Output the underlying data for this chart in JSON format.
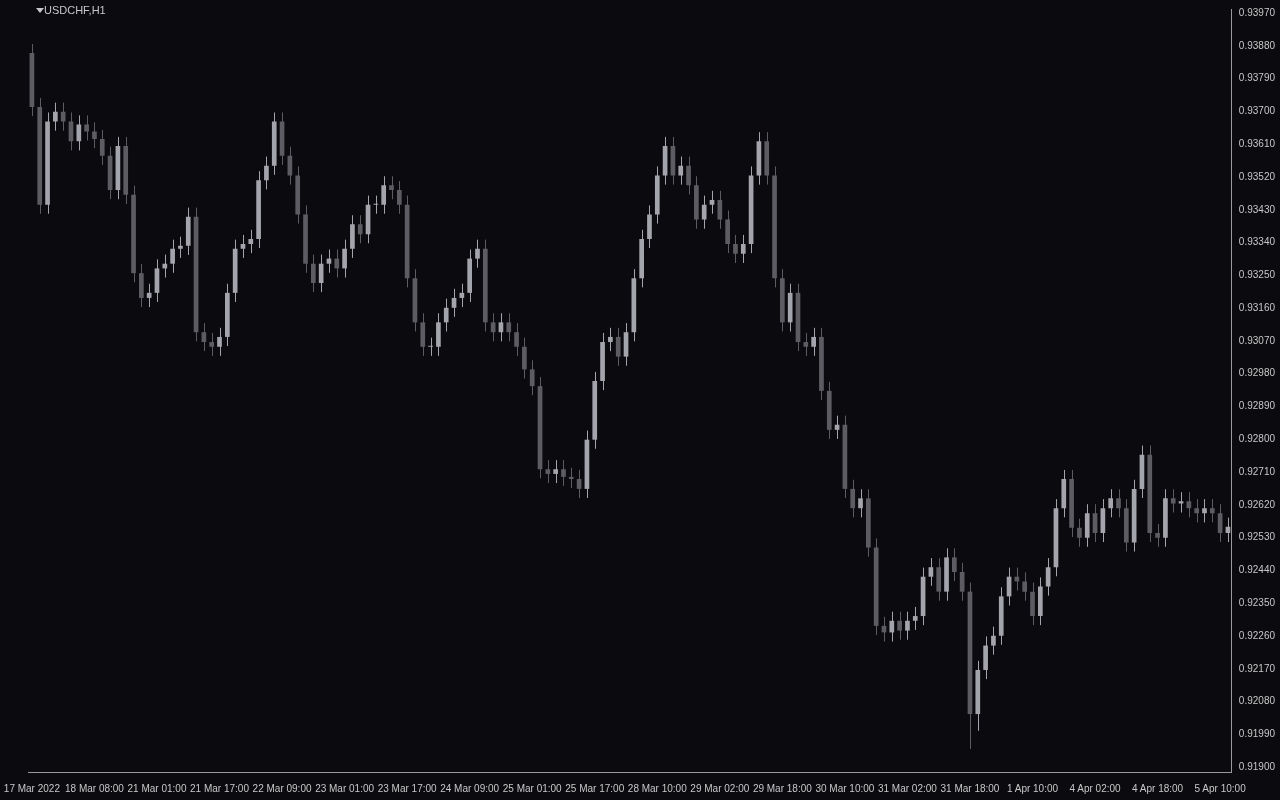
{
  "chart_data": {
    "type": "candlestick",
    "title": "USDCHF,H1",
    "categories": [
      "17 Mar 2022",
      null,
      null,
      null,
      null,
      null,
      null,
      null,
      "18 Mar 08:00",
      null,
      null,
      null,
      null,
      null,
      null,
      null,
      "21 Mar 01:00",
      null,
      null,
      null,
      null,
      null,
      null,
      null,
      "21 Mar 17:00",
      null,
      null,
      null,
      null,
      null,
      null,
      null,
      "22 Mar 09:00",
      null,
      null,
      null,
      null,
      null,
      null,
      null,
      "23 Mar 01:00",
      null,
      null,
      null,
      null,
      null,
      null,
      null,
      "23 Mar 17:00",
      null,
      null,
      null,
      null,
      null,
      null,
      null,
      "24 Mar 09:00",
      null,
      null,
      null,
      null,
      null,
      null,
      null,
      "25 Mar 01:00",
      null,
      null,
      null,
      null,
      null,
      null,
      null,
      "25 Mar 17:00",
      null,
      null,
      null,
      null,
      null,
      null,
      null,
      "28 Mar 10:00",
      null,
      null,
      null,
      null,
      null,
      null,
      null,
      "29 Mar 02:00",
      null,
      null,
      null,
      null,
      null,
      null,
      null,
      "29 Mar 18:00",
      null,
      null,
      null,
      null,
      null,
      null,
      null,
      "30 Mar 10:00",
      null,
      null,
      null,
      null,
      null,
      null,
      null,
      "31 Mar 02:00",
      null,
      null,
      null,
      null,
      null,
      null,
      null,
      "31 Mar 18:00",
      null,
      null,
      null,
      null,
      null,
      null,
      null,
      "1 Apr 10:00",
      null,
      null,
      null,
      null,
      null,
      null,
      null,
      "4 Apr 02:00",
      null,
      null,
      null,
      null,
      null,
      null,
      null,
      "4 Apr 18:00",
      null,
      null,
      null,
      null,
      null,
      null,
      null,
      "5 Apr 10:00",
      null
    ],
    "ohlc": [
      [
        0.9386,
        0.93885,
        0.93687,
        0.93712
      ],
      [
        0.93712,
        0.93737,
        0.93419,
        0.93444
      ],
      [
        0.93444,
        0.93697,
        0.93419,
        0.93672
      ],
      [
        0.93672,
        0.93724,
        0.93647,
        0.93699
      ],
      [
        0.93699,
        0.93724,
        0.93647,
        0.93672
      ],
      [
        0.93672,
        0.93697,
        0.93593,
        0.93618
      ],
      [
        0.93618,
        0.93689,
        0.93593,
        0.93664
      ],
      [
        0.93664,
        0.93689,
        0.9362,
        0.93645
      ],
      [
        0.93645,
        0.9367,
        0.93599,
        0.93624
      ],
      [
        0.93624,
        0.93649,
        0.93553,
        0.93578
      ],
      [
        0.93578,
        0.93603,
        0.93459,
        0.93484
      ],
      [
        0.93484,
        0.9363,
        0.93459,
        0.93605
      ],
      [
        0.93605,
        0.9363,
        0.93446,
        0.93471
      ],
      [
        0.93471,
        0.93496,
        0.93231,
        0.93256
      ],
      [
        0.93256,
        0.93281,
        0.93163,
        0.93188
      ],
      [
        0.93188,
        0.93227,
        0.93163,
        0.93202
      ],
      [
        0.93202,
        0.93294,
        0.93177,
        0.93269
      ],
      [
        0.93269,
        0.93307,
        0.93244,
        0.93282
      ],
      [
        0.93282,
        0.93348,
        0.93257,
        0.93323
      ],
      [
        0.93323,
        0.93356,
        0.93298,
        0.93331
      ],
      [
        0.93331,
        0.93436,
        0.93306,
        0.93411
      ],
      [
        0.93411,
        0.93436,
        0.93069,
        0.93094
      ],
      [
        0.93094,
        0.93119,
        0.93042,
        0.93067
      ],
      [
        0.93067,
        0.93092,
        0.93029,
        0.93054
      ],
      [
        0.93054,
        0.93106,
        0.93029,
        0.93081
      ],
      [
        0.93081,
        0.93227,
        0.93056,
        0.93202
      ],
      [
        0.93202,
        0.93348,
        0.93177,
        0.93323
      ],
      [
        0.93323,
        0.93361,
        0.93298,
        0.93336
      ],
      [
        0.93336,
        0.93375,
        0.93311,
        0.9335
      ],
      [
        0.9335,
        0.93536,
        0.93325,
        0.93511
      ],
      [
        0.93511,
        0.93576,
        0.93486,
        0.93551
      ],
      [
        0.93551,
        0.93697,
        0.93526,
        0.93672
      ],
      [
        0.93672,
        0.93697,
        0.93553,
        0.93578
      ],
      [
        0.93578,
        0.93603,
        0.93499,
        0.93524
      ],
      [
        0.93524,
        0.93549,
        0.93392,
        0.93417
      ],
      [
        0.93417,
        0.93442,
        0.93257,
        0.93282
      ],
      [
        0.93282,
        0.93307,
        0.93204,
        0.93229
      ],
      [
        0.93229,
        0.93307,
        0.93204,
        0.93282
      ],
      [
        0.93282,
        0.93321,
        0.93257,
        0.93296
      ],
      [
        0.93296,
        0.93321,
        0.93244,
        0.93269
      ],
      [
        0.93269,
        0.93348,
        0.93244,
        0.93323
      ],
      [
        0.93323,
        0.93415,
        0.93298,
        0.9339
      ],
      [
        0.9339,
        0.93415,
        0.93338,
        0.93363
      ],
      [
        0.93363,
        0.93469,
        0.93338,
        0.93444
      ],
      [
        0.93444,
        0.93469,
        0.93419,
        0.93444
      ],
      [
        0.93444,
        0.93522,
        0.93419,
        0.93497
      ],
      [
        0.93497,
        0.93522,
        0.93459,
        0.93484
      ],
      [
        0.93484,
        0.93509,
        0.93419,
        0.93444
      ],
      [
        0.93444,
        0.93469,
        0.93217,
        0.93242
      ],
      [
        0.93242,
        0.93267,
        0.93096,
        0.93121
      ],
      [
        0.93121,
        0.93146,
        0.93029,
        0.93054
      ],
      [
        0.93054,
        0.93079,
        0.93029,
        0.93054
      ],
      [
        0.93054,
        0.93146,
        0.93029,
        0.93121
      ],
      [
        0.93121,
        0.93186,
        0.93096,
        0.93161
      ],
      [
        0.93161,
        0.93213,
        0.93136,
        0.93188
      ],
      [
        0.93188,
        0.93227,
        0.93163,
        0.93202
      ],
      [
        0.93202,
        0.93321,
        0.93177,
        0.93296
      ],
      [
        0.93296,
        0.93348,
        0.93271,
        0.93323
      ],
      [
        0.93323,
        0.93348,
        0.93096,
        0.93121
      ],
      [
        0.93121,
        0.93146,
        0.93069,
        0.93094
      ],
      [
        0.93094,
        0.93146,
        0.93069,
        0.93121
      ],
      [
        0.93121,
        0.93146,
        0.93069,
        0.93094
      ],
      [
        0.93094,
        0.93119,
        0.93029,
        0.93054
      ],
      [
        0.93054,
        0.93079,
        0.92967,
        0.92992
      ],
      [
        0.92992,
        0.93017,
        0.92921,
        0.92946
      ],
      [
        0.92946,
        0.92971,
        0.92693,
        0.92718
      ],
      [
        0.92718,
        0.92743,
        0.9268,
        0.92705
      ],
      [
        0.92705,
        0.92743,
        0.9268,
        0.92718
      ],
      [
        0.92718,
        0.92743,
        0.92672,
        0.92697
      ],
      [
        0.92697,
        0.92722,
        0.92666,
        0.92691
      ],
      [
        0.92691,
        0.92716,
        0.92639,
        0.92664
      ],
      [
        0.92664,
        0.92824,
        0.92639,
        0.92799
      ],
      [
        0.92799,
        0.92985,
        0.92774,
        0.9296
      ],
      [
        0.9296,
        0.93092,
        0.92935,
        0.93067
      ],
      [
        0.93067,
        0.93106,
        0.93042,
        0.93081
      ],
      [
        0.93081,
        0.93106,
        0.93002,
        0.93027
      ],
      [
        0.93027,
        0.93119,
        0.93002,
        0.93094
      ],
      [
        0.93094,
        0.93267,
        0.93069,
        0.93242
      ],
      [
        0.93242,
        0.93375,
        0.93217,
        0.9335
      ],
      [
        0.9335,
        0.93442,
        0.93325,
        0.93417
      ],
      [
        0.93417,
        0.93549,
        0.93392,
        0.93524
      ],
      [
        0.93524,
        0.9363,
        0.93499,
        0.93605
      ],
      [
        0.93605,
        0.9363,
        0.93499,
        0.93524
      ],
      [
        0.93524,
        0.93576,
        0.93499,
        0.93551
      ],
      [
        0.93551,
        0.93576,
        0.93472,
        0.93497
      ],
      [
        0.93497,
        0.93522,
        0.93378,
        0.93403
      ],
      [
        0.93403,
        0.93469,
        0.93378,
        0.93444
      ],
      [
        0.93444,
        0.93482,
        0.93419,
        0.93457
      ],
      [
        0.93457,
        0.93482,
        0.93378,
        0.93403
      ],
      [
        0.93403,
        0.93428,
        0.93311,
        0.93336
      ],
      [
        0.93336,
        0.93361,
        0.93284,
        0.93309
      ],
      [
        0.93309,
        0.93361,
        0.93284,
        0.93336
      ],
      [
        0.93336,
        0.93549,
        0.93311,
        0.93524
      ],
      [
        0.93524,
        0.93643,
        0.93499,
        0.93618
      ],
      [
        0.93618,
        0.93643,
        0.93499,
        0.93524
      ],
      [
        0.93524,
        0.93549,
        0.93217,
        0.93242
      ],
      [
        0.93242,
        0.93267,
        0.93096,
        0.93121
      ],
      [
        0.93121,
        0.93227,
        0.93096,
        0.93202
      ],
      [
        0.93202,
        0.93227,
        0.93042,
        0.93067
      ],
      [
        0.93067,
        0.93092,
        0.93029,
        0.93054
      ],
      [
        0.93054,
        0.93106,
        0.93029,
        0.93081
      ],
      [
        0.93081,
        0.93106,
        0.92908,
        0.92933
      ],
      [
        0.92933,
        0.92958,
        0.92801,
        0.92826
      ],
      [
        0.92826,
        0.92865,
        0.92801,
        0.9284
      ],
      [
        0.9284,
        0.92865,
        0.92639,
        0.92664
      ],
      [
        0.92664,
        0.92689,
        0.92586,
        0.92611
      ],
      [
        0.92611,
        0.92663,
        0.92586,
        0.92638
      ],
      [
        0.92638,
        0.92663,
        0.92478,
        0.92503
      ],
      [
        0.92503,
        0.92528,
        0.92263,
        0.92288
      ],
      [
        0.92288,
        0.92313,
        0.92245,
        0.9227
      ],
      [
        0.9227,
        0.92327,
        0.92245,
        0.92302
      ],
      [
        0.92302,
        0.92327,
        0.9225,
        0.92275
      ],
      [
        0.92275,
        0.92327,
        0.9225,
        0.92302
      ],
      [
        0.92302,
        0.9234,
        0.92277,
        0.92315
      ],
      [
        0.92315,
        0.92448,
        0.9229,
        0.92423
      ],
      [
        0.92423,
        0.92474,
        0.92398,
        0.92449
      ],
      [
        0.92449,
        0.92474,
        0.92357,
        0.92382
      ],
      [
        0.92382,
        0.92501,
        0.92357,
        0.92476
      ],
      [
        0.92476,
        0.92501,
        0.92411,
        0.92436
      ],
      [
        0.92436,
        0.92461,
        0.92357,
        0.92382
      ],
      [
        0.92382,
        0.92407,
        0.9195,
        0.92046
      ],
      [
        0.92046,
        0.92192,
        0.92,
        0.92167
      ],
      [
        0.92167,
        0.92259,
        0.92142,
        0.92234
      ],
      [
        0.92234,
        0.92286,
        0.92209,
        0.92261
      ],
      [
        0.92261,
        0.92394,
        0.92236,
        0.92369
      ],
      [
        0.92369,
        0.92448,
        0.92344,
        0.92423
      ],
      [
        0.92423,
        0.92448,
        0.92385,
        0.9241
      ],
      [
        0.9241,
        0.92435,
        0.92357,
        0.92382
      ],
      [
        0.92382,
        0.92407,
        0.9229,
        0.92315
      ],
      [
        0.92315,
        0.92421,
        0.9229,
        0.92396
      ],
      [
        0.92396,
        0.92474,
        0.92371,
        0.92449
      ],
      [
        0.92449,
        0.92636,
        0.92424,
        0.92611
      ],
      [
        0.92611,
        0.92716,
        0.92586,
        0.92691
      ],
      [
        0.92691,
        0.92716,
        0.92532,
        0.92557
      ],
      [
        0.92557,
        0.92582,
        0.92505,
        0.9253
      ],
      [
        0.9253,
        0.92622,
        0.92505,
        0.92597
      ],
      [
        0.92597,
        0.92622,
        0.92518,
        0.92543
      ],
      [
        0.92543,
        0.92636,
        0.92518,
        0.92611
      ],
      [
        0.92611,
        0.92663,
        0.92586,
        0.92638
      ],
      [
        0.92638,
        0.92663,
        0.92586,
        0.92611
      ],
      [
        0.92611,
        0.92636,
        0.92492,
        0.92517
      ],
      [
        0.92517,
        0.92689,
        0.92492,
        0.92664
      ],
      [
        0.92664,
        0.92783,
        0.92639,
        0.92758
      ],
      [
        0.92758,
        0.92783,
        0.92518,
        0.92543
      ],
      [
        0.92543,
        0.92568,
        0.92505,
        0.9253
      ],
      [
        0.9253,
        0.92663,
        0.92505,
        0.92638
      ],
      [
        0.92638,
        0.92663,
        0.92599,
        0.92624
      ],
      [
        0.92624,
        0.92655,
        0.92599,
        0.9263
      ],
      [
        0.9263,
        0.92655,
        0.92586,
        0.92611
      ],
      [
        0.92611,
        0.92636,
        0.92572,
        0.92597
      ],
      [
        0.92597,
        0.92636,
        0.92572,
        0.92611
      ],
      [
        0.92611,
        0.92636,
        0.92572,
        0.92597
      ],
      [
        0.92597,
        0.92622,
        0.92518,
        0.92543
      ],
      [
        0.92543,
        0.92585,
        0.92518,
        0.9256
      ]
    ],
    "ylim": [
      0.91887,
      0.93981
    ],
    "yticks": [
      {
        "value": 0.919,
        "label": "0.91900"
      },
      {
        "value": 0.9199,
        "label": "0.91990"
      },
      {
        "value": 0.9208,
        "label": "0.92080"
      },
      {
        "value": 0.9217,
        "label": "0.92170"
      },
      {
        "value": 0.9226,
        "label": "0.92260"
      },
      {
        "value": 0.9235,
        "label": "0.92350"
      },
      {
        "value": 0.9244,
        "label": "0.92440"
      },
      {
        "value": 0.9253,
        "label": "0.92530"
      },
      {
        "value": 0.9262,
        "label": "0.92620"
      },
      {
        "value": 0.9271,
        "label": "0.92710"
      },
      {
        "value": 0.928,
        "label": "0.92800"
      },
      {
        "value": 0.9289,
        "label": "0.92890"
      },
      {
        "value": 0.9298,
        "label": "0.92980"
      },
      {
        "value": 0.9307,
        "label": "0.93070"
      },
      {
        "value": 0.9316,
        "label": "0.93160"
      },
      {
        "value": 0.9325,
        "label": "0.93250"
      },
      {
        "value": 0.9334,
        "label": "0.93340"
      },
      {
        "value": 0.9343,
        "label": "0.93430"
      },
      {
        "value": 0.9352,
        "label": "0.93520"
      },
      {
        "value": 0.9361,
        "label": "0.93610"
      },
      {
        "value": 0.937,
        "label": "0.93700"
      },
      {
        "value": 0.9379,
        "label": "0.93790"
      },
      {
        "value": 0.9388,
        "label": "0.93880"
      },
      {
        "value": 0.9397,
        "label": "0.93970"
      }
    ]
  }
}
